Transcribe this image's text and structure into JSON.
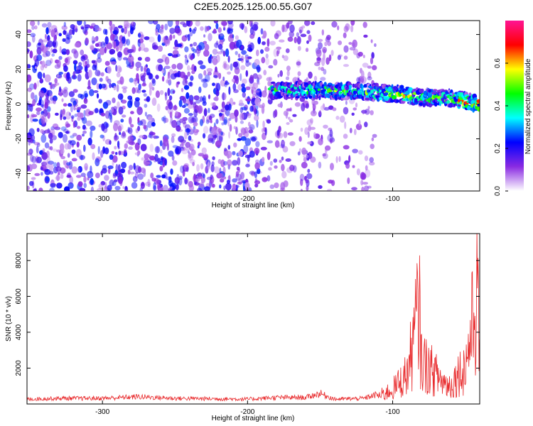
{
  "title": "C2E5.2025.125.00.55.G07",
  "chart_data": [
    {
      "type": "heatmap",
      "xlabel": "Height of straight line (km)",
      "ylabel": "Frequency (Hz)",
      "xlim": [
        -352,
        -40
      ],
      "ylim": [
        -50,
        48
      ],
      "xticks": [
        -300,
        -200,
        -100
      ],
      "yticks": [
        -40,
        -20,
        0,
        20,
        40
      ],
      "colorbar": {
        "label": "Normalized spectral amplitude",
        "range": [
          0.0,
          0.8
        ],
        "ticks": [
          0.0,
          0.2,
          0.4,
          0.6
        ],
        "colors": [
          "#ffffff",
          "#8a2be2",
          "#0000ff",
          "#00ffff",
          "#00ff00",
          "#ffff00",
          "#ff0000",
          "#ff1493"
        ]
      },
      "signal_band": {
        "x": [
          -185,
          -150,
          -120,
          -100,
          -80,
          -60,
          -40
        ],
        "frequency": [
          8,
          8,
          7,
          6,
          4,
          3,
          0
        ],
        "peak_amplitude": [
          0.45,
          0.55,
          0.5,
          0.65,
          0.6,
          0.55,
          0.8
        ]
      },
      "noise_region": {
        "dense_x_range": [
          -352,
          -190
        ],
        "sparse_x_range": [
          -190,
          -112
        ],
        "amplitude_range": [
          0.05,
          0.25
        ]
      }
    },
    {
      "type": "line",
      "xlabel": "Height of straight line (km)",
      "ylabel": "SNR (10 * v/v)",
      "xlim": [
        -352,
        -40
      ],
      "ylim": [
        0,
        9500
      ],
      "xticks": [
        -300,
        -200,
        -100
      ],
      "yticks": [
        2000,
        4000,
        6000,
        8000
      ],
      "color": "#e8292b",
      "series": [
        {
          "x": [
            -352,
            -330,
            -300,
            -275,
            -250,
            -200,
            -180,
            -160,
            -150,
            -140,
            -120,
            -110,
            -100,
            -95,
            -90,
            -85,
            -82,
            -80,
            -75,
            -70,
            -65,
            -60,
            -55,
            -50,
            -45,
            -42,
            -40
          ],
          "y": [
            300,
            350,
            350,
            450,
            350,
            300,
            400,
            400,
            650,
            300,
            350,
            600,
            1200,
            1800,
            2500,
            5500,
            8300,
            3500,
            3000,
            2400,
            1800,
            1500,
            2500,
            3000,
            6500,
            9200,
            4000
          ]
        }
      ]
    }
  ]
}
